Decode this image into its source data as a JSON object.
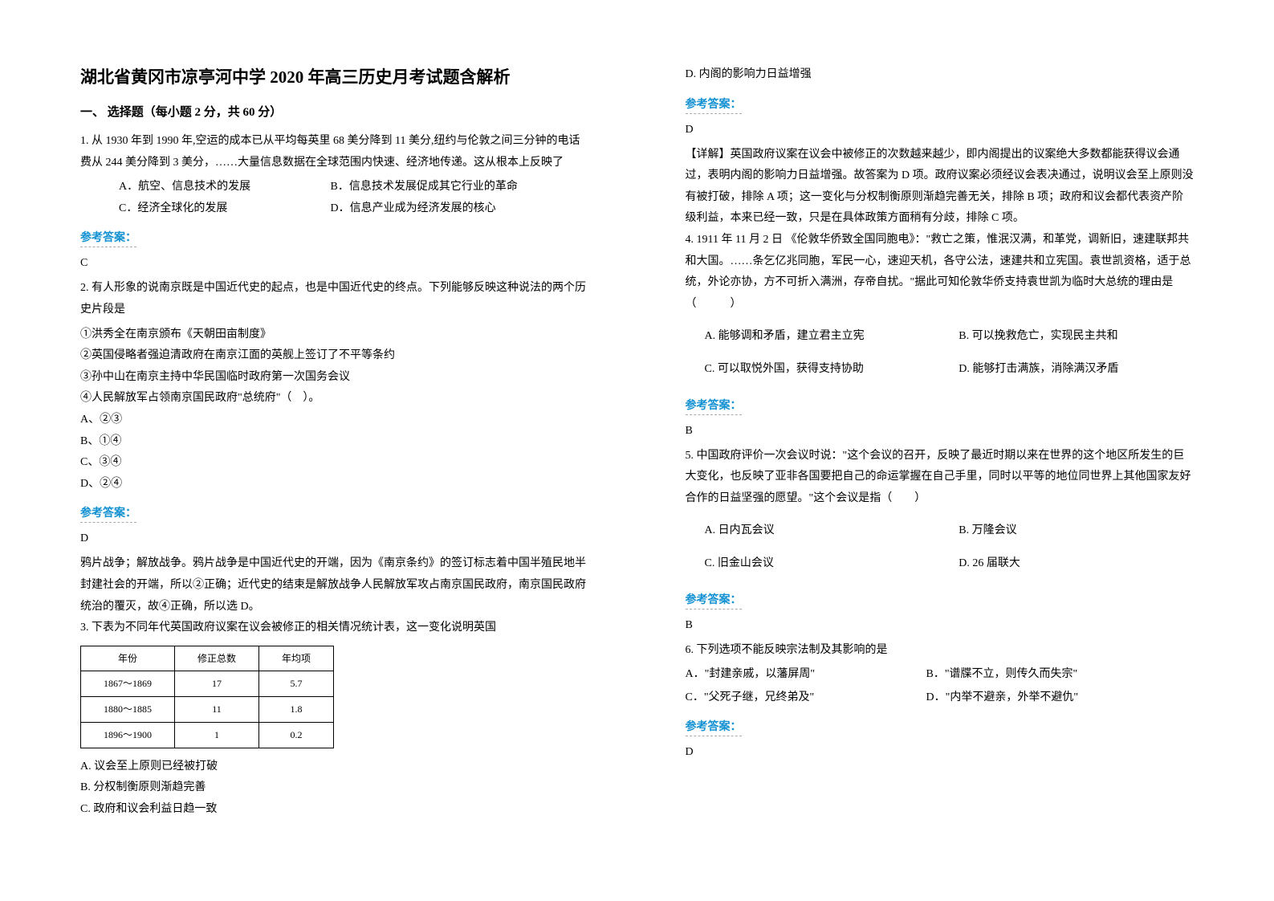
{
  "title": "湖北省黄冈市凉亭河中学 2020 年高三历史月考试题含解析",
  "section1": "一、 选择题（每小题 2 分，共 60 分）",
  "q1": {
    "stem": "1. 从 1930 年到 1990 年,空运的成本已从平均每英里 68 美分降到 11 美分,纽约与伦敦之间三分钟的电话费从 244 美分降到 3 美分，……大量信息数据在全球范围内快速、经济地传递。这从根本上反映了",
    "a": "A．航空、信息技术的发展",
    "b": "B．信息技术发展促成其它行业的革命",
    "c": "C．经济全球化的发展",
    "d": "D．信息产业成为经济发展的核心",
    "ans": "C"
  },
  "q2": {
    "stem": "2. 有人形象的说南京既是中国近代史的起点，也是中国近代史的终点。下列能够反映这种说法的两个历史片段是",
    "l1": "①洪秀全在南京颁布《天朝田亩制度》",
    "l2": "②英国侵略者强迫清政府在南京江面的英舰上签订了不平等条约",
    "l3": "③孙中山在南京主持中华民国临时政府第一次国务会议",
    "l4": "④人民解放军占领南京国民政府\"总统府\"（　）。",
    "a": "A、②③",
    "b": "B、①④",
    "c": "C、③④",
    "d": "D、②④",
    "ans": "D",
    "explain": "鸦片战争；解放战争。鸦片战争是中国近代史的开端，因为《南京条约》的签订标志着中国半殖民地半封建社会的开端，所以②正确；近代史的结束是解放战争人民解放军攻占南京国民政府，南京国民政府统治的覆灭，故④正确，所以选 D。"
  },
  "q3": {
    "stem": "3. 下表为不同年代英国政府议案在议会被修正的相关情况统计表，这一变化说明英国",
    "th1": "年份",
    "th2": "修正总数",
    "th3": "年均项",
    "r1c1": "1867～1869",
    "r1c2": "17",
    "r1c3": "5.7",
    "r2c1": "1880～1885",
    "r2c2": "11",
    "r2c3": "1.8",
    "r3c1": "1896～1900",
    "r3c2": "1",
    "r3c3": "0.2",
    "a": "A. 议会至上原则已经被打破",
    "b": "B. 分权制衡原则渐趋完善",
    "c": "C. 政府和议会利益日趋一致",
    "d": "D. 内阁的影响力日益增强",
    "ans": "D",
    "explain": "【详解】英国政府议案在议会中被修正的次数越来越少，即内阁提出的议案绝大多数都能获得议会通过，表明内阁的影响力日益增强。故答案为 D 项。政府议案必须经议会表决通过，说明议会至上原则没有被打破，排除 A 项；这一变化与分权制衡原则渐趋完善无关，排除 B 项；政府和议会都代表资产阶级利益，本来已经一致，只是在具体政策方面稍有分歧，排除 C 项。"
  },
  "q4": {
    "stem": "4. 1911 年 11 月 2 日 《伦敦华侨致全国同胞电》：\"救亡之策，惟泯汉满，和革党，调新旧，速建联邦共和大国。……条乞亿兆同胞，军民一心，速迎天机，各守公法，速建共和立宪国。袁世凯资格，适于总统，外论亦协，方不可折入满洲，存帝自扰。\"据此可知伦敦华侨支持袁世凯为临时大总统的理由是　　　　（　　　）",
    "a": "A. 能够调和矛盾，建立君主立宪",
    "b": "B. 可以挽救危亡，实现民主共和",
    "c": "C. 可以取悦外国，获得支持协助",
    "d": "D. 能够打击满族，消除满汉矛盾",
    "ans": "B"
  },
  "q5": {
    "stem": "5. 中国政府评价一次会议时说：\"这个会议的召开，反映了最近时期以来在世界的这个地区所发生的巨大变化，也反映了亚非各国要把自己的命运掌握在自己手里，同时以平等的地位同世界上其他国家友好合作的日益坚强的愿望。\"这个会议是指（　　）",
    "a": "A. 日内瓦会议",
    "b": "B. 万隆会议",
    "c": "C. 旧金山会议",
    "d": "D. 26 届联大",
    "ans": "B"
  },
  "q6": {
    "stem": "6. 下列选项不能反映宗法制及其影响的是",
    "a": "A．\"封建亲戚，以藩屏周\"",
    "b": "B．\"谱牒不立，则传久而失宗\"",
    "c": "C．\"父死子继，兄终弟及\"",
    "d": "D．\"内举不避亲，外举不避仇\"",
    "ans": "D"
  },
  "ans_label": "参考答案："
}
